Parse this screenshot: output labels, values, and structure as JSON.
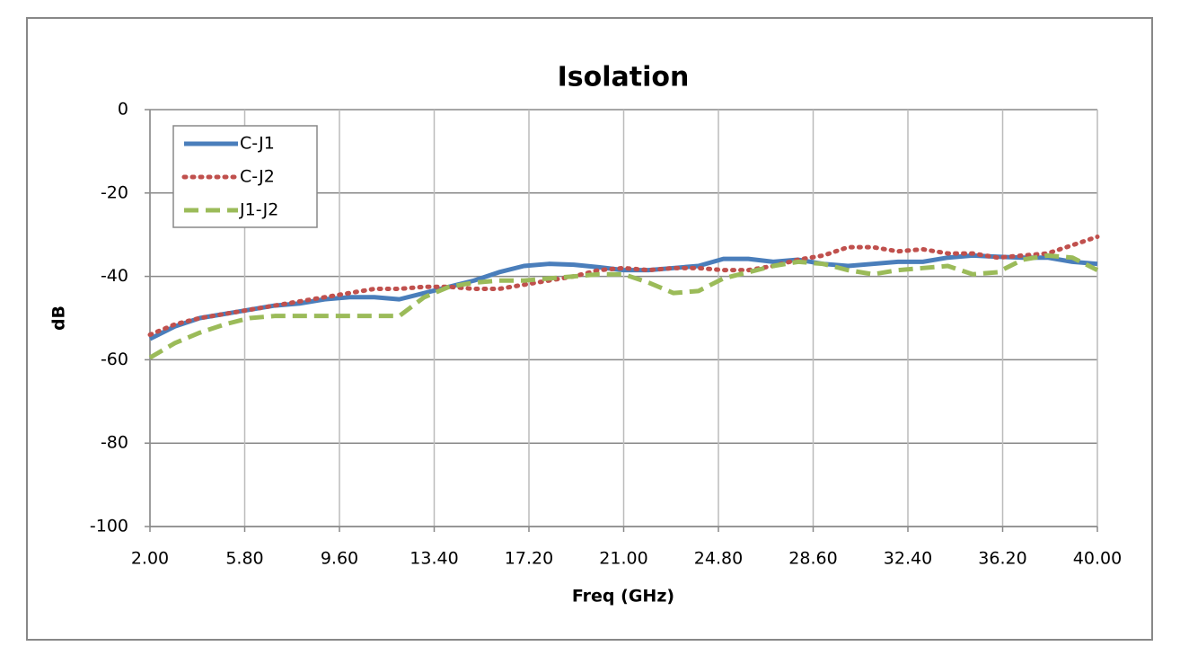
{
  "chart_data": {
    "type": "line",
    "title": "Isolation",
    "x_label": "Freq (GHz)",
    "y_label": "dB",
    "x": [
      2,
      3,
      4,
      5,
      6,
      7,
      8,
      9,
      10,
      11,
      12,
      13,
      14,
      15,
      16,
      17,
      18,
      19,
      20,
      21,
      22,
      23,
      24,
      25,
      26,
      27,
      28,
      29,
      30,
      31,
      32,
      33,
      34,
      35,
      36,
      37,
      38,
      39,
      40
    ],
    "series": [
      {
        "name": "C-J1",
        "color": "#4a7ebb",
        "style": "solid",
        "values": [
          -55,
          -52,
          -50,
          -49,
          -48,
          -47,
          -46.5,
          -45.5,
          -45,
          -45,
          -45.5,
          -44,
          -42.5,
          -41,
          -39,
          -37.5,
          -37,
          -37.2,
          -37.8,
          -38.5,
          -38.5,
          -38,
          -37.5,
          -35.8,
          -35.8,
          -36.5,
          -36,
          -37,
          -37.5,
          -37,
          -36.5,
          -36.5,
          -35.5,
          -35,
          -35.3,
          -35.5,
          -35.5,
          -36.5,
          -37
        ]
      },
      {
        "name": "C-J2",
        "color": "#c0504d",
        "style": "dotted",
        "values": [
          -54,
          -51.5,
          -50,
          -49,
          -48,
          -47,
          -46,
          -45,
          -44,
          -43,
          -43,
          -42.5,
          -42.5,
          -43,
          -43,
          -42,
          -41,
          -40,
          -38.5,
          -38,
          -38.5,
          -38,
          -38,
          -38.5,
          -38.5,
          -37.5,
          -36,
          -35,
          -33,
          -33,
          -34,
          -33.5,
          -34.5,
          -34.5,
          -35.5,
          -35,
          -34.5,
          -32.5,
          -30.5
        ]
      },
      {
        "name": "J1-J2",
        "color": "#9bbb59",
        "style": "dashed",
        "values": [
          -59.5,
          -56,
          -53.5,
          -51.5,
          -50,
          -49.5,
          -49.5,
          -49.5,
          -49.5,
          -49.5,
          -49.5,
          -45,
          -42.5,
          -41.5,
          -41,
          -41,
          -40.5,
          -40,
          -39.5,
          -39.5,
          -41.5,
          -44,
          -43.5,
          -40.5,
          -39,
          -37.5,
          -36.5,
          -37,
          -38.5,
          -39.5,
          -38.5,
          -38,
          -37.5,
          -39.5,
          -39,
          -36,
          -35,
          -35.5,
          -38.5
        ]
      }
    ],
    "xlim": [
      2,
      40
    ],
    "xticks": [
      {
        "value": 2,
        "label": "2.00"
      },
      {
        "value": 5.8,
        "label": "5.80"
      },
      {
        "value": 9.6,
        "label": "9.60"
      },
      {
        "value": 13.4,
        "label": "13.40"
      },
      {
        "value": 17.2,
        "label": "17.20"
      },
      {
        "value": 21,
        "label": "21.00"
      },
      {
        "value": 24.8,
        "label": "24.80"
      },
      {
        "value": 28.6,
        "label": "28.60"
      },
      {
        "value": 32.4,
        "label": "32.40"
      },
      {
        "value": 36.2,
        "label": "36.20"
      },
      {
        "value": 40,
        "label": "40.00"
      }
    ],
    "ylim": [
      -100,
      0
    ],
    "yticks": [
      -100,
      -80,
      -60,
      -40,
      -20,
      0
    ],
    "grid": true,
    "legend": "top-left"
  }
}
